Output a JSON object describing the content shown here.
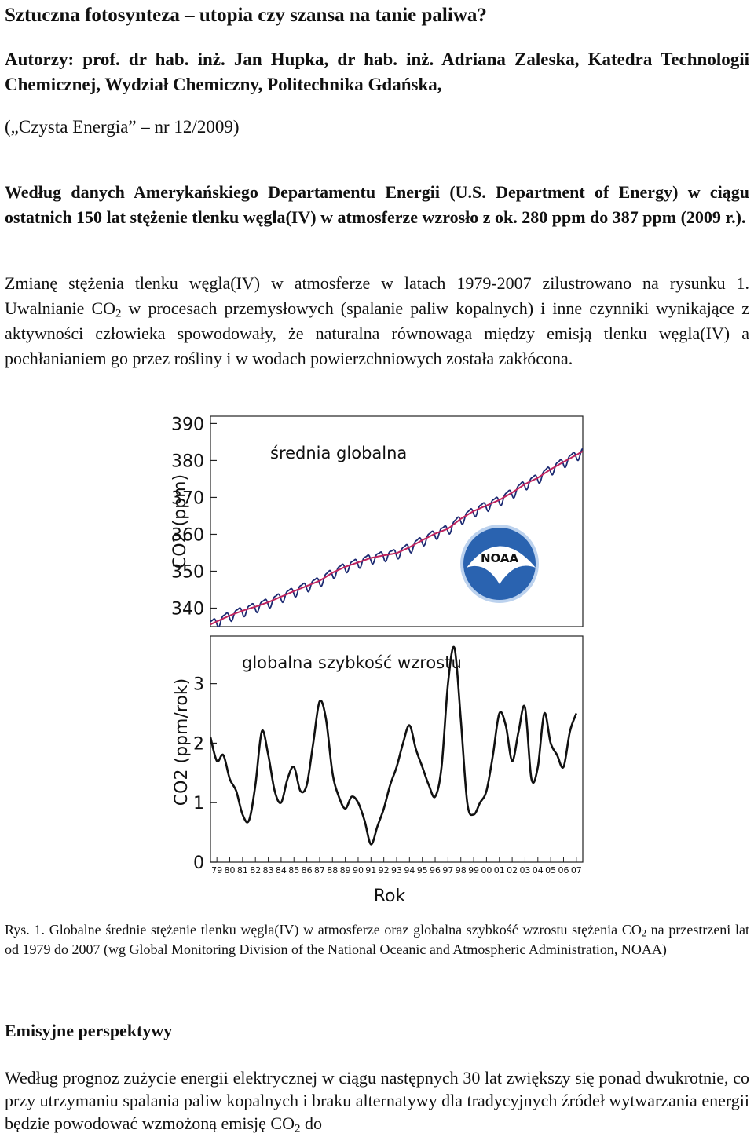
{
  "title": "Sztuczna fotosynteza – utopia czy szansa na tanie paliwa?",
  "authors": "Autorzy: prof. dr hab. inż. Jan Hupka, dr hab. inż. Adriana Zaleska, Katedra Technologii Chemicznej, Wydział Chemiczny, Politechnika Gdańska,",
  "journal": "(„Czysta Energia” – nr 12/2009)",
  "paragraph1": "Według danych Amerykańskiego Departamentu Energii (U.S. Department of Energy) w ciągu ostatnich 150 lat stężenie tlenku węgla(IV) w atmosferze wzrosło z ok. 280 ppm do 387 ppm (2009 r.).",
  "paragraph2": {
    "before": "Zmianę stężenia tlenku węgla(IV) w atmosferze w latach 1979-2007 zilustrowano na rysunku 1. Uwalnianie CO",
    "sub": "2",
    "after": " w procesach przemysłowych (spalanie paliw kopalnych) i inne czynniki wynikające z aktywności człowieka spowodowały, że naturalna równowaga między emisją tlenku węgla(IV) a pochłanianiem go przez rośliny i w wodach powierzchniowych została zakłócona."
  },
  "caption": {
    "before": "Rys. 1. Globalne średnie stężenie tlenku węgla(IV) w atmosferze oraz globalna szybkość wzrostu stężenia CO",
    "sub": "2",
    "after": " na przestrzeni lat od 1979 do 2007 (wg Global Monitoring Division of the National Oceanic and Atmospheric Administration, NOAA)"
  },
  "section_heading": "Emisyjne perspektywy",
  "paragraph3": {
    "before": "Według prognoz zużycie energii elektrycznej w ciągu następnych 30 lat zwiększy się ponad dwukrotnie, co przy utrzymaniu spalania paliw kopalnych i braku alternatywy dla tradycyjnych źródeł wytwarzania energii będzie powodować wzmożoną emisję CO",
    "sub": "2",
    "after": " do"
  },
  "logo_text": "NOAA",
  "chart_data": [
    {
      "type": "line",
      "title": "średnia globalna",
      "ylabel": "CO2 (ppm)",
      "ylim": [
        335,
        392
      ],
      "yticks": [
        340,
        350,
        360,
        370,
        380,
        390
      ],
      "xlim": [
        1979.0,
        2008.0
      ],
      "trend": {
        "x": [
          1979,
          1980,
          1981,
          1982,
          1983,
          1984,
          1985,
          1986,
          1987,
          1988,
          1989,
          1990,
          1991,
          1992,
          1993,
          1994,
          1995,
          1996,
          1997,
          1998,
          1999,
          2000,
          2001,
          2002,
          2003,
          2004,
          2005,
          2006,
          2007
        ],
        "y": [
          336.4,
          338.0,
          339.3,
          340.4,
          341.6,
          343.1,
          344.6,
          346.0,
          347.4,
          349.6,
          351.2,
          352.4,
          353.6,
          354.3,
          354.9,
          356.5,
          358.4,
          360.2,
          361.5,
          364.2,
          366.3,
          367.8,
          369.3,
          371.3,
          373.6,
          375.3,
          377.6,
          379.6,
          381.5
        ]
      },
      "seasonal_amplitude_ppm": 1.3,
      "colors": {
        "trend": "#c0245e",
        "monthly": "#1c2a72"
      }
    },
    {
      "type": "line",
      "title": "globalna szybkość wzrostu",
      "ylabel": "CO2 (ppm/rok)",
      "xlabel": "Rok",
      "ylim": [
        0,
        3.8
      ],
      "yticks": [
        0,
        1,
        2,
        3
      ],
      "xlim": [
        1979.0,
        2008.0
      ],
      "xtick_labels": [
        "79",
        "80",
        "81",
        "82",
        "83",
        "84",
        "85",
        "86",
        "87",
        "88",
        "89",
        "90",
        "91",
        "92",
        "93",
        "94",
        "95",
        "96",
        "97",
        "98",
        "99",
        "00",
        "01",
        "02",
        "03",
        "04",
        "05",
        "06",
        "07"
      ],
      "x": [
        1979.0,
        1979.5,
        1980.0,
        1980.5,
        1981.0,
        1981.5,
        1982.0,
        1982.5,
        1983.0,
        1983.5,
        1984.0,
        1984.5,
        1985.0,
        1985.5,
        1986.0,
        1986.5,
        1987.0,
        1987.5,
        1988.0,
        1988.5,
        1989.0,
        1989.5,
        1990.0,
        1990.5,
        1991.0,
        1991.5,
        1992.0,
        1992.5,
        1993.0,
        1993.5,
        1994.0,
        1994.5,
        1995.0,
        1995.5,
        1996.0,
        1996.5,
        1997.0,
        1997.5,
        1998.0,
        1998.5,
        1999.0,
        1999.5,
        2000.0,
        2000.5,
        2001.0,
        2001.5,
        2002.0,
        2002.5,
        2003.0,
        2003.5,
        2004.0,
        2004.5,
        2005.0,
        2005.5,
        2006.0,
        2006.5,
        2007.0,
        2007.5
      ],
      "values": [
        2.1,
        1.7,
        1.8,
        1.4,
        1.2,
        0.8,
        0.7,
        1.3,
        2.2,
        1.8,
        1.2,
        1.0,
        1.4,
        1.6,
        1.2,
        1.3,
        2.0,
        2.7,
        2.4,
        1.5,
        1.1,
        0.9,
        1.1,
        1.0,
        0.7,
        0.3,
        0.6,
        0.9,
        1.3,
        1.6,
        2.0,
        2.3,
        1.9,
        1.6,
        1.3,
        1.1,
        1.6,
        3.0,
        3.6,
        2.4,
        1.0,
        0.8,
        1.0,
        1.2,
        1.8,
        2.5,
        2.3,
        1.7,
        2.2,
        2.6,
        1.4,
        1.6,
        2.5,
        2.0,
        1.8,
        1.6,
        2.2,
        2.5
      ],
      "color": "#111111"
    }
  ]
}
